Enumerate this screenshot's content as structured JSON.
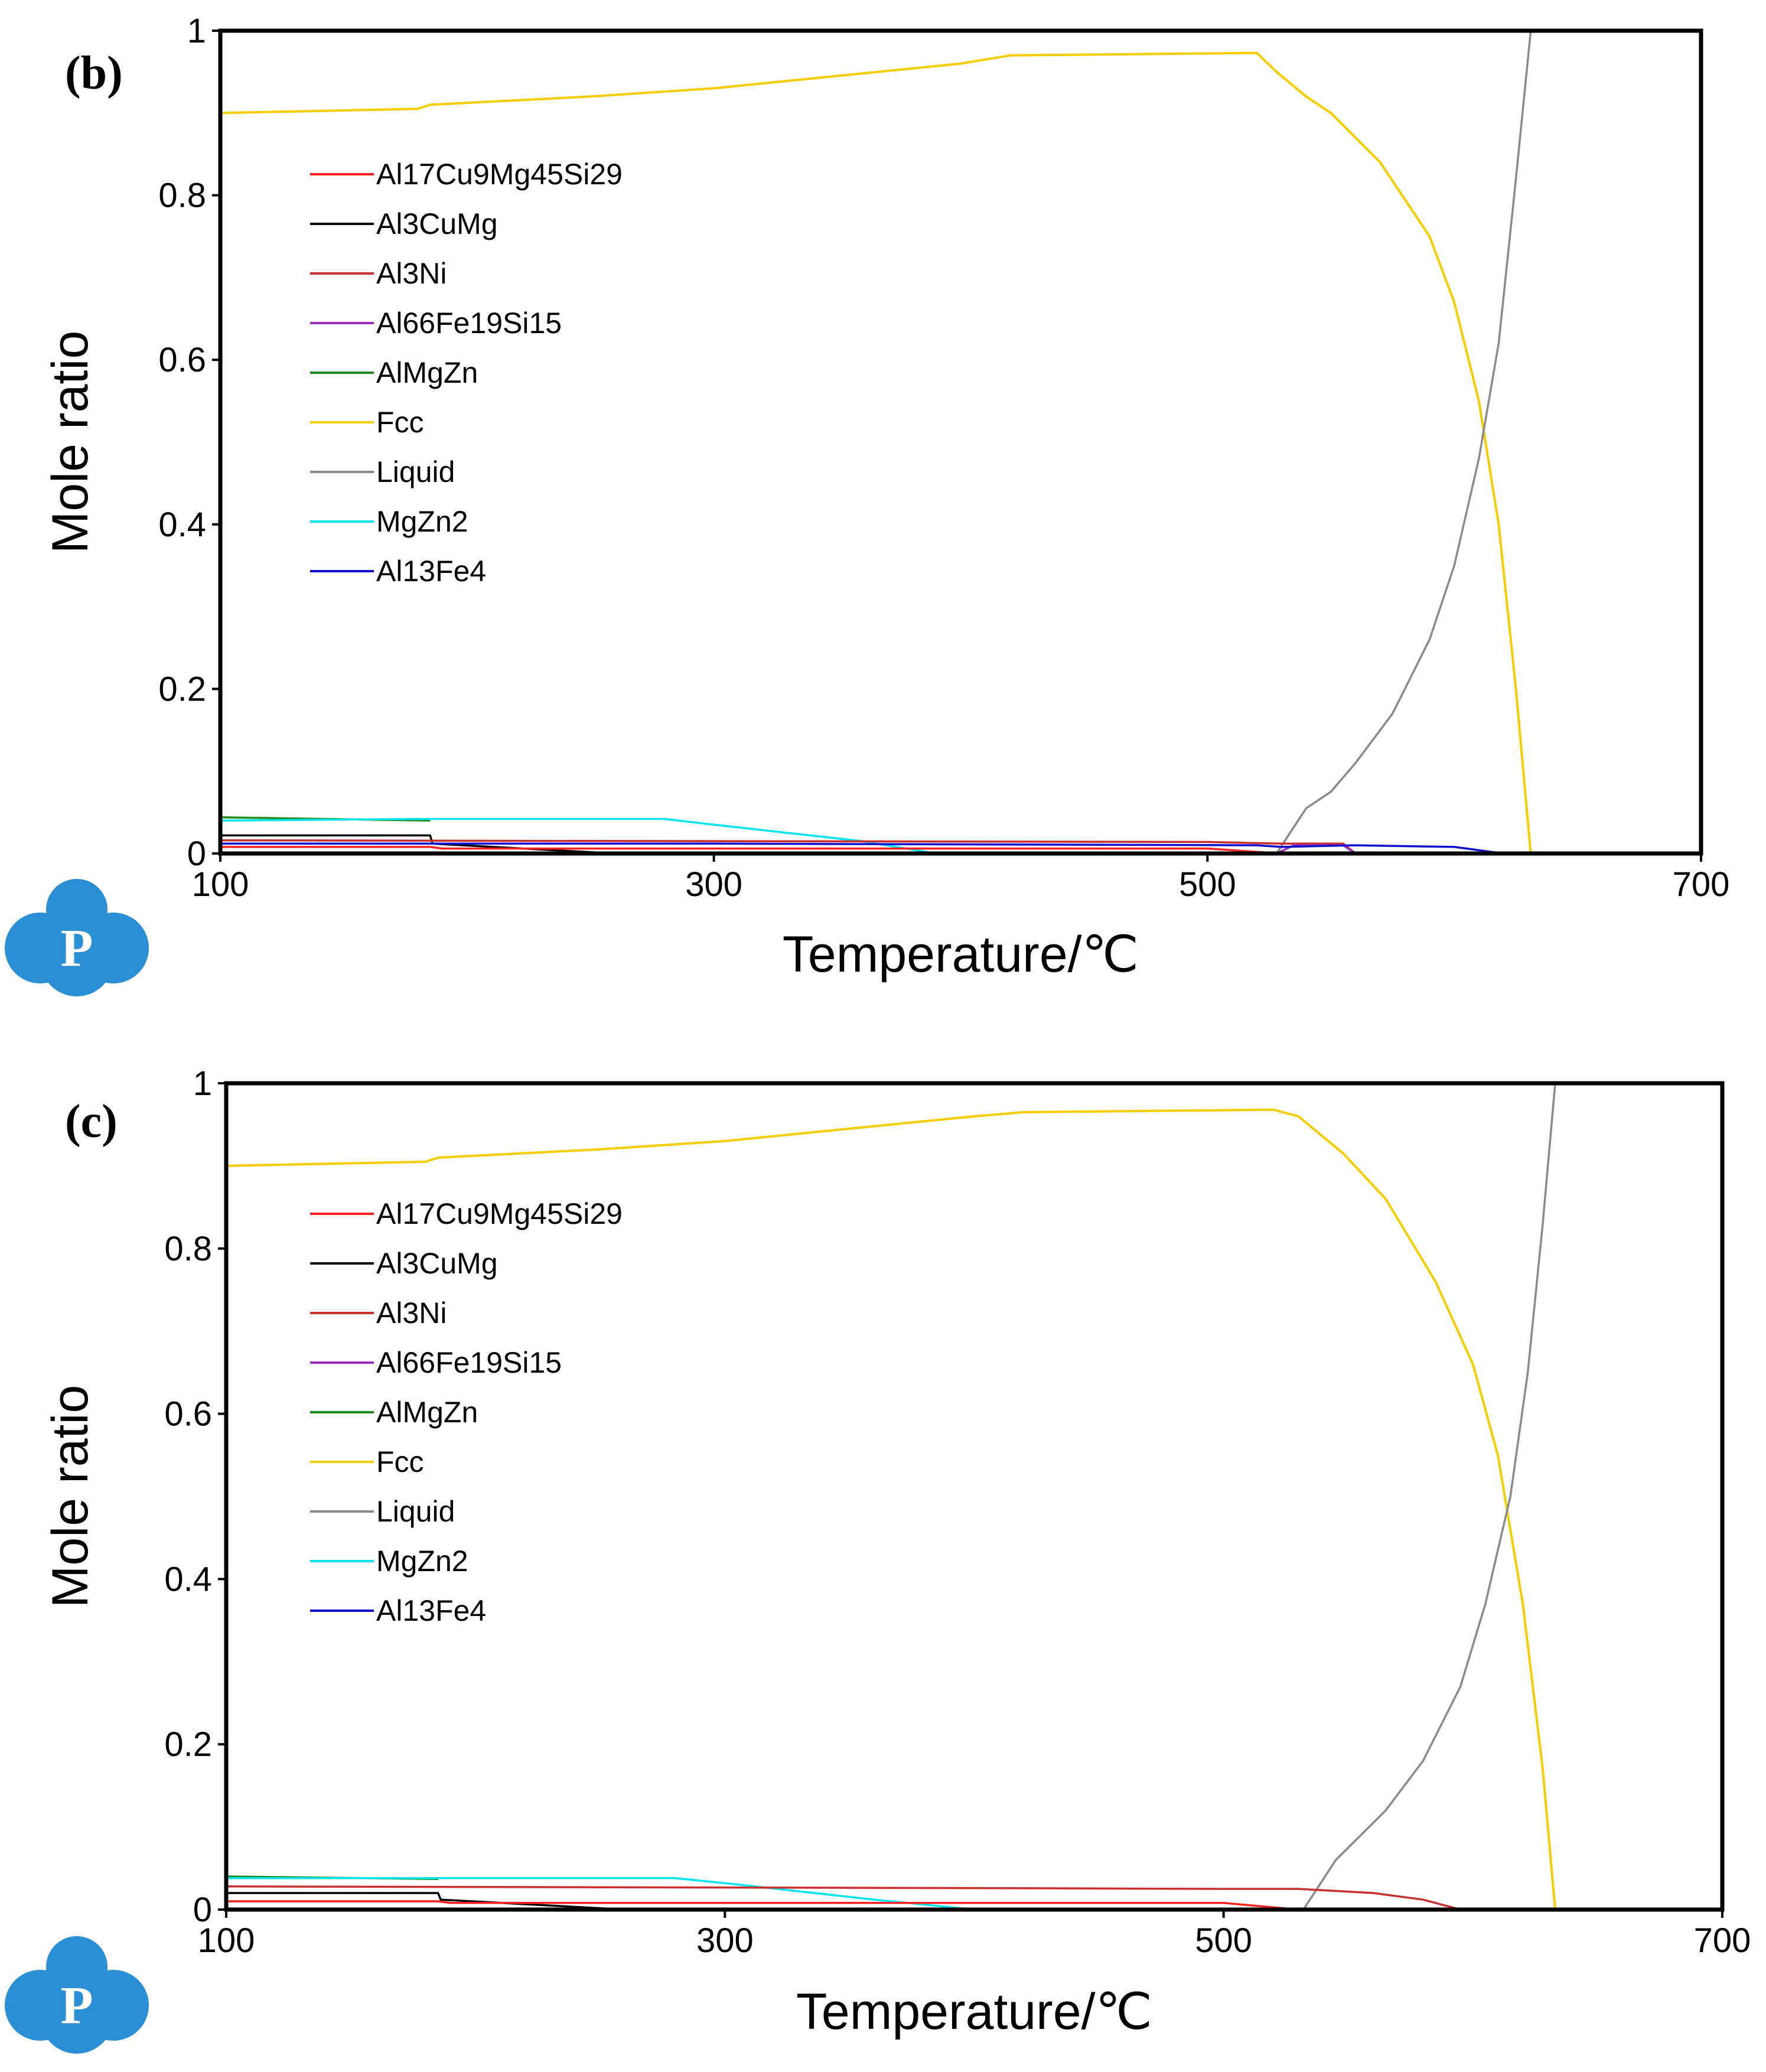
{
  "colors": {
    "Al17Cu9Mg45Si29": "#ff2020",
    "Al3CuMg": "#000000",
    "Al3Ni": "#c83030",
    "Al66Fe19Si15": "#9b30b8",
    "AlMgZn": "#1a8a1a",
    "Fcc": "#f5cd00",
    "Liquid": "#8a8a8a",
    "MgZn2": "#00e5f0",
    "Al13Fe4": "#1010d0",
    "logo": "#2b8fd6"
  },
  "chart_data": [
    {
      "panel_label": "(b)",
      "type": "line",
      "xlabel": "Temperature/℃",
      "ylabel": "Mole ratio",
      "xlim": [
        100,
        700
      ],
      "ylim": [
        0,
        1
      ],
      "xticks": [
        "100",
        "300",
        "500",
        "700"
      ],
      "yticks": [
        "0",
        "0.2",
        "0.4",
        "0.6",
        "0.8",
        "1"
      ],
      "legend": [
        "Al17Cu9Mg45Si29",
        "Al3CuMg",
        "Al3Ni",
        "Al66Fe19Si15",
        "AlMgZn",
        "Fcc",
        "Liquid",
        "MgZn2",
        "Al13Fe4"
      ],
      "series": [
        {
          "name": "Fcc",
          "x": [
            100,
            180,
            185,
            250,
            300,
            350,
            400,
            420,
            520,
            528,
            540,
            550,
            570,
            590,
            600,
            610,
            618,
            625,
            631
          ],
          "y": [
            0.9,
            0.905,
            0.91,
            0.92,
            0.93,
            0.945,
            0.96,
            0.97,
            0.973,
            0.95,
            0.92,
            0.9,
            0.84,
            0.75,
            0.67,
            0.55,
            0.4,
            0.2,
            0.0
          ]
        },
        {
          "name": "Liquid",
          "x": [
            528,
            540,
            550,
            560,
            575,
            590,
            600,
            610,
            618,
            625,
            631
          ],
          "y": [
            0.0,
            0.055,
            0.075,
            0.11,
            0.17,
            0.26,
            0.35,
            0.48,
            0.62,
            0.82,
            1.0
          ]
        },
        {
          "name": "AlMgZn",
          "x": [
            100,
            185
          ],
          "y": [
            0.044,
            0.04
          ]
        },
        {
          "name": "MgZn2",
          "x": [
            100,
            180,
            280,
            300,
            330,
            360,
            390
          ],
          "y": [
            0.04,
            0.042,
            0.042,
            0.035,
            0.025,
            0.015,
            0.0
          ]
        },
        {
          "name": "Al3CuMg",
          "x": [
            100,
            185,
            186,
            260
          ],
          "y": [
            0.022,
            0.022,
            0.012,
            0.0
          ]
        },
        {
          "name": "Al17Cu9Mg45Si29",
          "x": [
            100,
            185,
            190,
            500,
            530
          ],
          "y": [
            0.008,
            0.008,
            0.006,
            0.006,
            0.0
          ]
        },
        {
          "name": "Al3Ni",
          "x": [
            100,
            500,
            530,
            555,
            560
          ],
          "y": [
            0.016,
            0.014,
            0.012,
            0.012,
            0.0
          ]
        },
        {
          "name": "Al66Fe19Si15",
          "x": [
            528,
            535,
            555,
            560
          ],
          "y": [
            0.0,
            0.01,
            0.01,
            0.0
          ]
        },
        {
          "name": "Al13Fe4",
          "x": [
            100,
            300,
            520,
            530,
            560,
            600,
            620
          ],
          "y": [
            0.012,
            0.012,
            0.01,
            0.008,
            0.01,
            0.008,
            0.0
          ]
        }
      ]
    },
    {
      "panel_label": "(c)",
      "type": "line",
      "xlabel": "Temperature/℃",
      "ylabel": "Mole ratio",
      "xlim": [
        100,
        700
      ],
      "ylim": [
        0,
        1
      ],
      "xticks": [
        "100",
        "300",
        "500",
        "700"
      ],
      "yticks": [
        "0",
        "0.2",
        "0.4",
        "0.6",
        "0.8",
        "1"
      ],
      "legend": [
        "Al17Cu9Mg45Si29",
        "Al3CuMg",
        "Al3Ni",
        "Al66Fe19Si15",
        "AlMgZn",
        "Fcc",
        "Liquid",
        "MgZn2",
        "Al13Fe4"
      ],
      "series": [
        {
          "name": "Fcc",
          "x": [
            100,
            180,
            185,
            250,
            300,
            350,
            400,
            420,
            520,
            530,
            540,
            548,
            565,
            585,
            600,
            610,
            620,
            628,
            633
          ],
          "y": [
            0.9,
            0.905,
            0.91,
            0.92,
            0.93,
            0.945,
            0.96,
            0.965,
            0.968,
            0.96,
            0.935,
            0.915,
            0.86,
            0.76,
            0.66,
            0.55,
            0.37,
            0.17,
            0.0
          ]
        },
        {
          "name": "Liquid",
          "x": [
            532,
            545,
            555,
            565,
            580,
            595,
            605,
            615,
            622,
            628,
            633
          ],
          "y": [
            0.0,
            0.06,
            0.09,
            0.12,
            0.18,
            0.27,
            0.37,
            0.5,
            0.65,
            0.83,
            1.0
          ]
        },
        {
          "name": "AlMgZn",
          "x": [
            100,
            185
          ],
          "y": [
            0.04,
            0.037
          ]
        },
        {
          "name": "MgZn2",
          "x": [
            100,
            180,
            280,
            300,
            330,
            360,
            400
          ],
          "y": [
            0.038,
            0.038,
            0.038,
            0.032,
            0.022,
            0.012,
            0.0
          ]
        },
        {
          "name": "Al3CuMg",
          "x": [
            100,
            185,
            186,
            260
          ],
          "y": [
            0.02,
            0.02,
            0.012,
            0.0
          ]
        },
        {
          "name": "Al17Cu9Mg45Si29",
          "x": [
            100,
            185,
            190,
            500,
            530
          ],
          "y": [
            0.01,
            0.01,
            0.008,
            0.008,
            0.0
          ]
        },
        {
          "name": "Al3Ni",
          "x": [
            100,
            400,
            500,
            530,
            560,
            580,
            595
          ],
          "y": [
            0.028,
            0.026,
            0.025,
            0.025,
            0.02,
            0.012,
            0.0
          ]
        },
        {
          "name": "Al66Fe19Si15",
          "x": [
            100,
            600
          ],
          "y": [
            0.0,
            0.0
          ]
        },
        {
          "name": "Al13Fe4",
          "x": [
            100,
            600
          ],
          "y": [
            0.001,
            0.001
          ]
        }
      ]
    }
  ]
}
